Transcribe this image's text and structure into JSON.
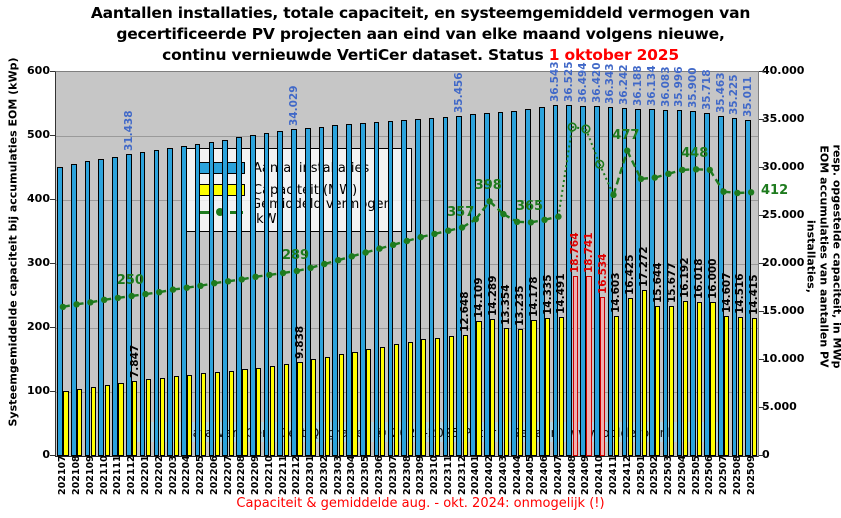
{
  "title": {
    "line1": "Aantallen installaties, totale capaciteit, en systeemgemiddeld vermogen van",
    "line2": "gecertificeerde PV projecten aan eind van elke maand volgens nieuwe,",
    "line3_prefix": "continu vernieuwde VertiCer dataset. Status ",
    "line3_status": "1 oktober 2025"
  },
  "axes": {
    "left_title": "Systeemgemiddelde capaciteit bij accumulaties EOM (kWp)",
    "right_title_first_column": "EOM accumulaties van aantallen PV installaties,",
    "right_title_second_column": "resp. opgestelde capaciteit, in MWp",
    "left_ticks": [
      "0",
      "100",
      "200",
      "300",
      "400",
      "500",
      "600"
    ],
    "right_ticks": [
      "0",
      "5.000",
      "10.000",
      "15.000",
      "20.000",
      "25.000",
      "30.000",
      "35.000",
      "40.000"
    ]
  },
  "legend": {
    "items": [
      {
        "label": "Aantal installaties",
        "swatch": "blue-bar-swatch"
      },
      {
        "label": "Capaciteit (MW)",
        "swatch": "yellow-bar-swatch"
      },
      {
        "label": "Gemiddeld vermogen (kW)",
        "swatch": "green-line-swatch"
      }
    ]
  },
  "watermark": "Data VertiCer - CertiQ; grafiek © 2023-2025 Peter J. Segaar / www.polderpv.nl",
  "caption": "Capaciteit & gemiddelde aug. - okt. 2024: onmogelijk (!)",
  "colors": {
    "status_red": "#ff0000",
    "caption_red": "#ff0000",
    "bar_installations": "#2ba3dc",
    "bar_capacity": "#ffff00",
    "bar_impossible_fill": "#f2afad",
    "bar_impossible_border": "#cc0000",
    "label_installations": "#4169c8",
    "label_impossible": "#e00000",
    "line_avg": "#1e7b1e",
    "plot_bg": "#c6c6c6",
    "gridline": "#9a9a9a",
    "watermark_bg": "#aad6e9"
  },
  "chart_data": {
    "type": "bar",
    "note_line_series_uses_left_axis": true,
    "categories": [
      "202107",
      "202108",
      "202109",
      "202110",
      "202111",
      "202112",
      "202201",
      "202202",
      "202203",
      "202204",
      "202205",
      "202206",
      "202207",
      "202208",
      "202209",
      "202210",
      "202211",
      "202212",
      "202301",
      "202302",
      "202303",
      "202304",
      "202305",
      "202306",
      "202307",
      "202308",
      "202309",
      "202310",
      "202311",
      "202312",
      "202401",
      "202402",
      "202403",
      "202404",
      "202405",
      "202406",
      "202407",
      "202408",
      "202409",
      "202410",
      "202411",
      "202412",
      "202501",
      "202502",
      "202503",
      "202504",
      "202505",
      "202506",
      "202507",
      "202508",
      "202509"
    ],
    "left_axis": {
      "min": 0,
      "max": 600,
      "ticks_step": 100
    },
    "right_axis": {
      "min": 0,
      "max": 40000,
      "ticks_step": 5000
    },
    "series": [
      {
        "name": "Aantal installaties",
        "type": "bar",
        "axis": "right",
        "values": [
          30157,
          30430,
          30700,
          30950,
          31200,
          31438,
          31650,
          31870,
          32090,
          32310,
          32530,
          32750,
          32970,
          33190,
          33400,
          33610,
          33820,
          34029,
          34180,
          34320,
          34450,
          34570,
          34690,
          34810,
          34930,
          35040,
          35150,
          35260,
          35360,
          35456,
          35600,
          35720,
          35840,
          35990,
          36150,
          36350,
          36543,
          36525,
          36494,
          36420,
          36343,
          36242,
          36188,
          36134,
          36083,
          35996,
          35900,
          35718,
          35463,
          35225,
          35011
        ],
        "value_labels": {
          "202112": "31.438",
          "202212": "34.029",
          "202312": "35.456",
          "202407": "36.543",
          "202408": "36.525",
          "202409": "36.494",
          "202410": "36.420",
          "202411": "36.343",
          "202412": "36.242",
          "202501": "36.188",
          "202502": "36.134",
          "202503": "36.083",
          "202504": "35.996",
          "202505": "35.900",
          "202506": "35.718",
          "202507": "35.463",
          "202508": "35.225",
          "202509": "35.011"
        }
      },
      {
        "name": "Capaciteit (MW)",
        "type": "bar",
        "axis": "right",
        "values": [
          6800,
          6950,
          7150,
          7350,
          7600,
          7847,
          8000,
          8150,
          8300,
          8450,
          8600,
          8750,
          8900,
          9050,
          9220,
          9400,
          9600,
          9838,
          10100,
          10350,
          10600,
          10850,
          11100,
          11400,
          11650,
          11900,
          12150,
          12300,
          12500,
          12648,
          14109,
          14289,
          13354,
          13235,
          14178,
          14335,
          14491,
          18764,
          18741,
          16534,
          14603,
          16425,
          17272,
          15644,
          15677,
          16192,
          16018,
          16000,
          14607,
          14516,
          14415
        ],
        "value_labels": {
          "202112": "7.847",
          "202212": "9.838",
          "202312": "12.648",
          "202401": "14.109",
          "202402": "14.289",
          "202403": "13.354",
          "202404": "13.235",
          "202405": "14.178",
          "202406": "14.335",
          "202407": "14.491",
          "202408": "18.764",
          "202409": "18.741",
          "202410": "16.534",
          "202411": "14.603",
          "202412": "16.425",
          "202501": "17.272",
          "202502": "15.644",
          "202503": "15.677",
          "202504": "16.192",
          "202505": "16.018",
          "202506": "16.000",
          "202507": "14.607",
          "202508": "14.516",
          "202509": "14.415"
        },
        "impossible_months": [
          "202408",
          "202409",
          "202410"
        ]
      },
      {
        "name": "Gemiddeld vermogen (kW)",
        "type": "line",
        "axis": "left",
        "values": [
          233,
          237,
          240,
          244,
          247,
          250,
          253,
          256,
          260,
          263,
          266,
          270,
          273,
          276,
          280,
          283,
          286,
          289,
          294,
          300,
          306,
          312,
          318,
          324,
          330,
          336,
          342,
          347,
          352,
          357,
          370,
          398,
          378,
          366,
          365,
          369,
          374,
          514,
          511,
          456,
          408,
          477,
          433,
          435,
          441,
          447,
          448,
          447,
          413,
          411,
          412
        ],
        "value_labels": {
          "202112": "250",
          "202212": "289",
          "202312": "357",
          "202402": "398",
          "202405": "365",
          "202412": "477",
          "202505": "448",
          "202509": "412"
        },
        "estimated_months": [
          "202408",
          "202409",
          "202410"
        ]
      }
    ]
  }
}
